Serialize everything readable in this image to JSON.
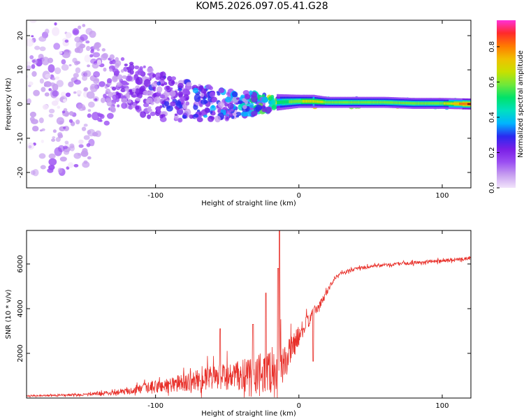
{
  "title": "KOM5.2026.097.05.41.G28",
  "chart_data": [
    {
      "type": "heatmap",
      "name": "spectrogram",
      "xlabel": "Height of straight line (km)",
      "ylabel": "Frequency (Hz)",
      "xlim": [
        -190,
        120
      ],
      "ylim": [
        -24.5,
        24.5
      ],
      "xticks": [
        -100,
        0,
        100
      ],
      "xtick_labels": [
        "-100",
        "0",
        "100"
      ],
      "yticks": [
        -20,
        -10,
        0,
        10,
        20
      ],
      "ytick_labels": [
        "-20",
        "-10",
        "0",
        "10",
        "20"
      ],
      "colorbar": {
        "label": "Normalized spectral amplitude",
        "range": [
          0.0,
          0.95
        ],
        "ticks": [
          0.0,
          0.2,
          0.4,
          0.6,
          0.8
        ],
        "tick_labels": [
          "0.0",
          "0.2",
          "0.4",
          "0.6",
          "0.8"
        ],
        "colors": [
          "#f2e4fb",
          "#c79ff0",
          "#9b4ef2",
          "#7a1fe6",
          "#2a2af0",
          "#00b4ff",
          "#00e0c0",
          "#00e26a",
          "#6fe83a",
          "#c8e000",
          "#f0c000",
          "#ff7a00",
          "#ff2a2a",
          "#ff30d8"
        ]
      },
      "profile": {
        "height_km": [
          -190,
          -150,
          -130,
          -110,
          -90,
          -70,
          -50,
          -30,
          -15,
          0,
          10,
          20,
          40,
          60,
          80,
          100,
          120
        ],
        "center_hz": [
          4.0,
          4.0,
          6.0,
          4.0,
          1.5,
          0.5,
          0.0,
          0.0,
          0.5,
          0.8,
          0.8,
          0.5,
          0.5,
          0.5,
          0.2,
          0.2,
          0.0
        ],
        "halfwidth_hz": [
          24,
          22,
          8,
          7,
          6,
          5,
          4,
          3,
          1.5,
          1.2,
          1.2,
          1.0,
          1.0,
          1.0,
          1.0,
          1.0,
          1.0
        ],
        "amplitude": [
          0.08,
          0.08,
          0.12,
          0.15,
          0.18,
          0.2,
          0.22,
          0.3,
          0.45,
          0.55,
          0.6,
          0.55,
          0.5,
          0.55,
          0.5,
          0.55,
          0.8
        ]
      }
    },
    {
      "type": "line",
      "name": "snr",
      "xlabel": "Height of straight line (km)",
      "ylabel": "SNR (10 * v/v)",
      "xlim": [
        -190,
        120
      ],
      "ylim": [
        0,
        7500
      ],
      "xticks": [
        -100,
        0,
        100
      ],
      "xtick_labels": [
        "-100",
        "0",
        "100"
      ],
      "yticks": [
        2000,
        4000,
        6000
      ],
      "ytick_labels": [
        "2000",
        "4000",
        "6000"
      ],
      "color": "#e8302a",
      "envelope": {
        "height_km": [
          -190,
          -150,
          -120,
          -100,
          -80,
          -60,
          -40,
          -30,
          -20,
          -15,
          -10,
          0,
          10,
          15,
          20,
          25,
          30,
          40,
          60,
          80,
          100,
          120
        ],
        "base": [
          100,
          150,
          300,
          500,
          700,
          900,
          1000,
          1100,
          1200,
          1300,
          1600,
          2800,
          3800,
          4200,
          4800,
          5400,
          5600,
          5800,
          5950,
          6050,
          6150,
          6250
        ],
        "amplitude": [
          60,
          100,
          250,
          600,
          800,
          1100,
          1400,
          1700,
          2000,
          2600,
          1600,
          900,
          500,
          400,
          300,
          200,
          150,
          150,
          150,
          150,
          150,
          150
        ]
      },
      "peaks": [
        {
          "x": -13.5,
          "y": 7500
        },
        {
          "x": -14.5,
          "y": 5800
        },
        {
          "x": -23,
          "y": 4700
        },
        {
          "x": 10,
          "y": 1650
        },
        {
          "x": -55,
          "y": 3100
        },
        {
          "x": -32,
          "y": 3300
        }
      ]
    }
  ]
}
